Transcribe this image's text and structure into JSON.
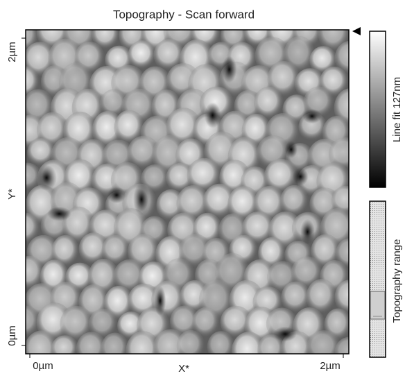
{
  "title": "Topography - Scan forward",
  "y_axis": {
    "top": "2µm",
    "label": "Y*",
    "bottom": "0µm"
  },
  "x_axis": {
    "left": "0µm",
    "label": "X*",
    "right": "2µm"
  },
  "colorbar_label": "Line fit 127nm",
  "range_label": "Topography range"
}
